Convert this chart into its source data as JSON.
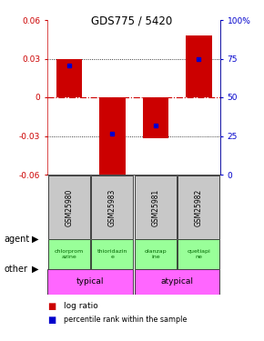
{
  "title": "GDS775 / 5420",
  "samples": [
    "GSM25980",
    "GSM25983",
    "GSM25981",
    "GSM25982"
  ],
  "log_ratios": [
    0.03,
    -0.065,
    -0.032,
    0.048
  ],
  "percentile_ranks": [
    0.025,
    -0.028,
    -0.022,
    0.03
  ],
  "ylim": [
    -0.06,
    0.06
  ],
  "yticks": [
    -0.06,
    -0.03,
    0.0,
    0.03,
    0.06
  ],
  "ytick_labels_left": [
    "-0.06",
    "-0.03",
    "0",
    "0.03",
    "0.06"
  ],
  "ytick_labels_right": [
    "0",
    "25",
    "50",
    "75",
    "100%"
  ],
  "agents": [
    "chlorprom\nazine",
    "thioridazin\ne",
    "olanzap\nine",
    "quetiapi\nne"
  ],
  "other_color": "#FF66FF",
  "agent_color": "#99FF99",
  "bar_color": "#CC0000",
  "dot_color": "#0000CC",
  "sample_bg_color": "#C8C8C8",
  "bar_width": 0.6,
  "zero_line_color": "#CC0000",
  "left_tick_color": "#CC0000",
  "right_tick_color": "#0000CC"
}
